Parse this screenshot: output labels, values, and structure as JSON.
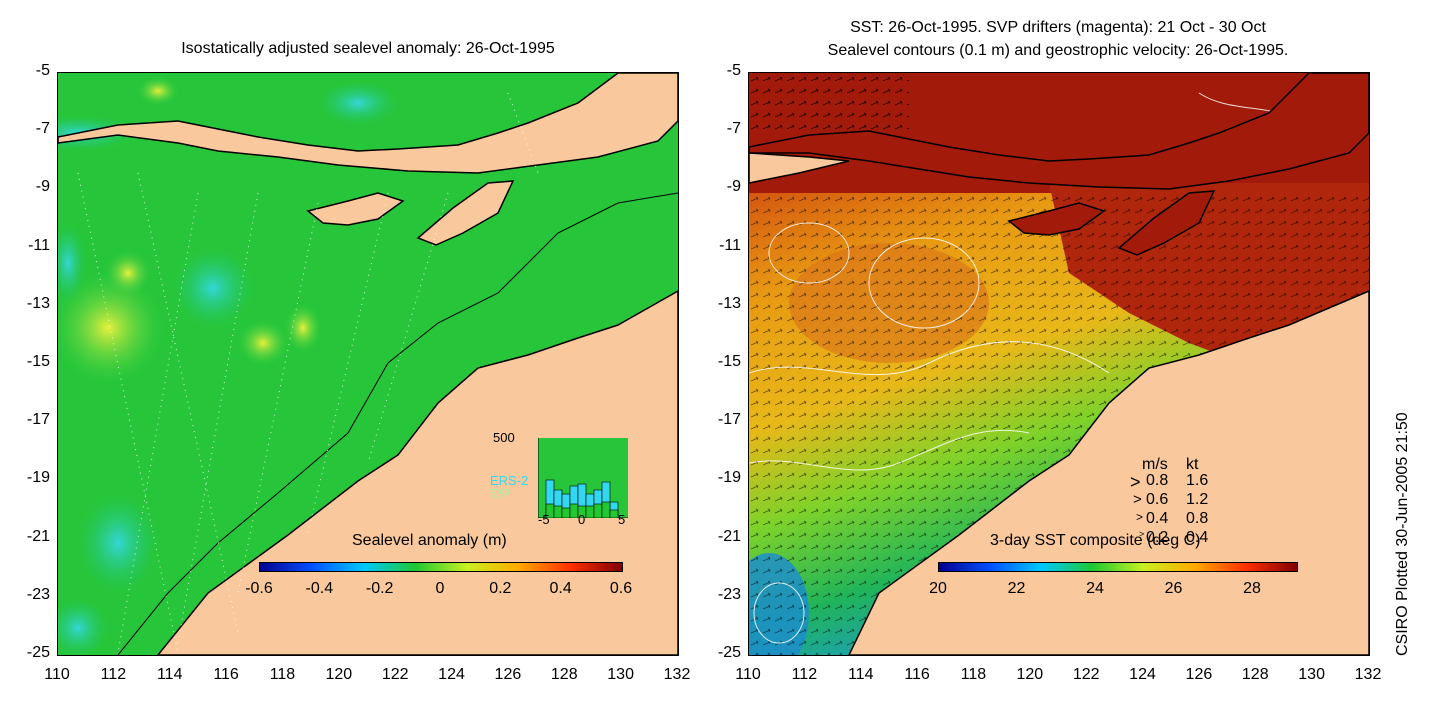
{
  "left_panel": {
    "title": "Isostatically adjusted sealevel anomaly: 26-Oct-1995",
    "y_ticks": [
      "-5",
      "-7",
      "-9",
      "-11",
      "-13",
      "-15",
      "-17",
      "-19",
      "-21",
      "-23",
      "-25"
    ],
    "x_ticks": [
      "110",
      "112",
      "114",
      "116",
      "118",
      "120",
      "122",
      "124",
      "126",
      "128",
      "130",
      "132"
    ],
    "colorbar": {
      "label": "Sealevel anomaly (m)",
      "ticks": [
        "-0.6",
        "-0.4",
        "-0.2",
        "0",
        "0.2",
        "0.4",
        "0.6"
      ]
    },
    "histogram": {
      "ymax_label": "500",
      "legend": [
        "ERS-2",
        "T/P"
      ],
      "x_ticks": [
        "-5",
        "0",
        "5"
      ]
    }
  },
  "right_panel": {
    "title_line1": "SST: 26-Oct-1995. SVP drifters (magenta): 21 Oct - 30 Oct",
    "title_line2": "Sealevel contours (0.1 m) and geostrophic velocity: 26-Oct-1995.",
    "y_ticks": [
      "-5",
      "-7",
      "-9",
      "-11",
      "-13",
      "-15",
      "-17",
      "-19",
      "-21",
      "-23",
      "-25"
    ],
    "x_ticks": [
      "110",
      "112",
      "114",
      "116",
      "118",
      "120",
      "122",
      "124",
      "126",
      "128",
      "130",
      "132"
    ],
    "colorbar": {
      "label": "3-day SST composite (deg C)",
      "ticks": [
        "20",
        "22",
        "24",
        "26",
        "28"
      ]
    },
    "velocity_key": {
      "header_ms": "m/s",
      "header_kt": "kt",
      "rows": [
        {
          "ms": "0.8",
          "kt": "1.6"
        },
        {
          "ms": "0.6",
          "kt": "1.2"
        },
        {
          "ms": "0.4",
          "kt": "0.8"
        },
        {
          "ms": "0.2",
          "kt": "0.4"
        }
      ]
    }
  },
  "credit": "CSIRO Plotted 30-Jun-2005 21:50",
  "colors": {
    "land": "#f9c99d",
    "ocean_green": "#1ec832",
    "sst_red": "#a21a0a",
    "sst_orange": "#e8910f"
  }
}
